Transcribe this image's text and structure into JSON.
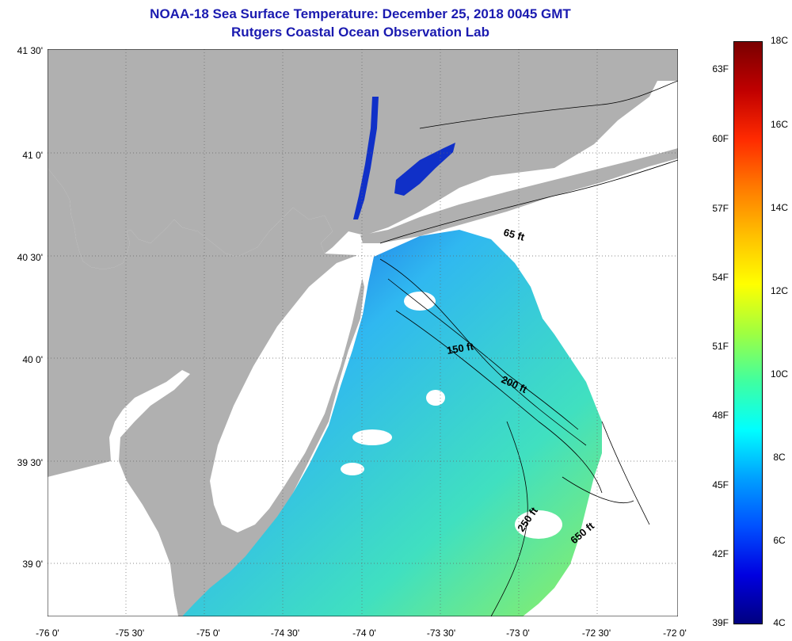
{
  "header": {
    "title": "NOAA-18 Sea Surface Temperature:  December 25, 2018 0045 GMT",
    "subtitle": "Rutgers Coastal Ocean Observation Lab"
  },
  "axes": {
    "lat_labels": [
      "41 30'",
      "41 0'",
      "40 30'",
      "40 0'",
      "39 30'",
      "39 0'"
    ],
    "lon_labels": [
      "-76 0'",
      "-75 30'",
      "-75 0'",
      "-74 30'",
      "-74 0'",
      "-73 30'",
      "-73 0'",
      "-72 30'",
      "-72 0'"
    ]
  },
  "isobaths": [
    "65 ft",
    "150 ft",
    "200 ft",
    "250 ft",
    "650 ft"
  ],
  "colorbar": {
    "fahrenheit": [
      "63F",
      "60F",
      "57F",
      "54F",
      "51F",
      "48F",
      "45F",
      "42F",
      "39F"
    ],
    "celsius": [
      "18C",
      "16C",
      "14C",
      "12C",
      "10C",
      "8C",
      "6C",
      "4C"
    ],
    "colors": [
      "#7a0000",
      "#c00000",
      "#ff2a00",
      "#ff7a00",
      "#ffc000",
      "#ffff00",
      "#a0ff40",
      "#40ffa0",
      "#00ffff",
      "#00a0ff",
      "#0050ff",
      "#0000e0",
      "#000080"
    ]
  },
  "colors": {
    "land": "#b0b0b0",
    "no_data": "#ffffff",
    "title": "#1a1ab0"
  }
}
